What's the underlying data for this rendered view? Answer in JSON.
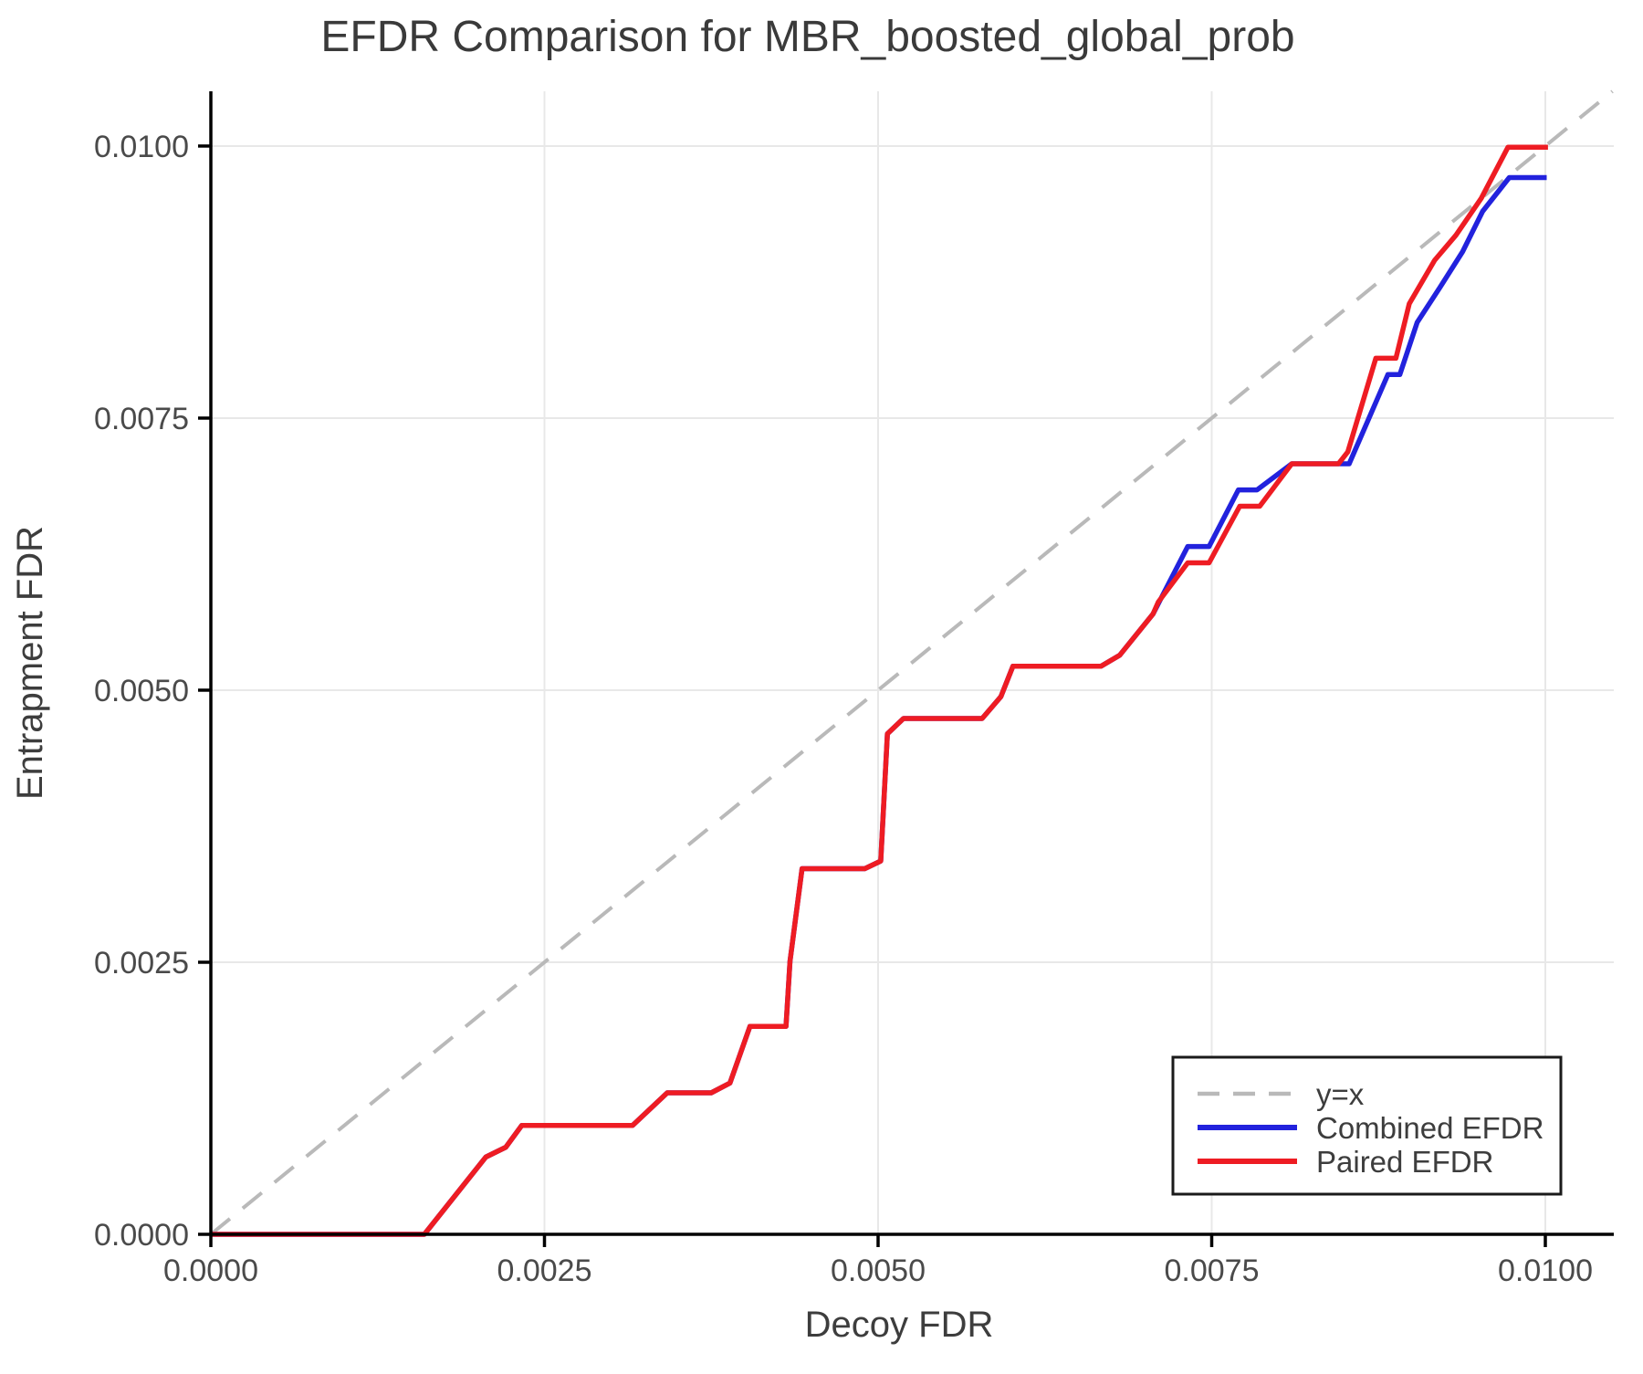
{
  "chart_data": {
    "type": "line",
    "title": "EFDR Comparison for MBR_boosted_global_prob",
    "xlabel": "Decoy FDR",
    "ylabel": "Entrapment FDR",
    "xlim": [
      0,
      0.010513
    ],
    "ylim": [
      0,
      0.010503
    ],
    "grid": true,
    "legend_position": "lower-right",
    "colors": {
      "grid": "#e8e8e8",
      "axis": "#000000",
      "identity": "#b9b9b9",
      "combined": "#2222dd",
      "paired": "#ee1c23"
    },
    "xticks": {
      "values": [
        0,
        0.0025,
        0.005,
        0.0075,
        0.01
      ],
      "labels": [
        "0.0000",
        "0.0025",
        "0.0050",
        "0.0075",
        "0.0100"
      ]
    },
    "yticks": {
      "values": [
        0,
        0.0025,
        0.005,
        0.0075,
        0.01
      ],
      "labels": [
        "0.0000",
        "0.0025",
        "0.0050",
        "0.0075",
        "0.0100"
      ]
    },
    "series": [
      {
        "id": "identity-line",
        "name": "y=x",
        "color": "#b9b9b9",
        "dash": "27 18",
        "width": 4,
        "points": [
          [
            0,
            0
          ],
          [
            0.010503,
            0.010503
          ]
        ]
      },
      {
        "id": "combined-efdr-line",
        "name": "Combined EFDR",
        "color": "#2222dd",
        "dash": null,
        "width": 5.5,
        "points": [
          [
            0.0,
            0.0
          ],
          [
            0.0016,
            0.0
          ],
          [
            0.00206,
            0.00071
          ],
          [
            0.00221,
            0.0008
          ],
          [
            0.00233,
            0.001
          ],
          [
            0.00316,
            0.001
          ],
          [
            0.00342,
            0.0013
          ],
          [
            0.00375,
            0.0013
          ],
          [
            0.00389,
            0.00139
          ],
          [
            0.00404,
            0.00191
          ],
          [
            0.00431,
            0.00191
          ],
          [
            0.00434,
            0.00251
          ],
          [
            0.00443,
            0.00336
          ],
          [
            0.0049,
            0.00336
          ],
          [
            0.00502,
            0.00343
          ],
          [
            0.00507,
            0.0046
          ],
          [
            0.00519,
            0.00474
          ],
          [
            0.00578,
            0.00474
          ],
          [
            0.00592,
            0.00494
          ],
          [
            0.00601,
            0.00522
          ],
          [
            0.00667,
            0.00522
          ],
          [
            0.00681,
            0.00532
          ],
          [
            0.00706,
            0.0057
          ],
          [
            0.00732,
            0.00632
          ],
          [
            0.00748,
            0.00632
          ],
          [
            0.0077,
            0.00684
          ],
          [
            0.00784,
            0.00684
          ],
          [
            0.0081,
            0.00708
          ],
          [
            0.00853,
            0.00708
          ],
          [
            0.00882,
            0.0079
          ],
          [
            0.00891,
            0.0079
          ],
          [
            0.00904,
            0.00838
          ],
          [
            0.00921,
            0.0087
          ],
          [
            0.00938,
            0.00903
          ],
          [
            0.00953,
            0.0094
          ],
          [
            0.00973,
            0.00971
          ],
          [
            0.01001,
            0.00971
          ]
        ]
      },
      {
        "id": "paired-efdr-line",
        "name": "Paired EFDR",
        "color": "#ee1c23",
        "dash": null,
        "width": 5.5,
        "points": [
          [
            0.0,
            0.0
          ],
          [
            0.0016,
            0.0
          ],
          [
            0.00206,
            0.00071
          ],
          [
            0.00221,
            0.0008
          ],
          [
            0.00233,
            0.001
          ],
          [
            0.00316,
            0.001
          ],
          [
            0.00342,
            0.0013
          ],
          [
            0.00375,
            0.0013
          ],
          [
            0.00389,
            0.00139
          ],
          [
            0.00404,
            0.00191
          ],
          [
            0.00431,
            0.00191
          ],
          [
            0.00434,
            0.00251
          ],
          [
            0.00443,
            0.00336
          ],
          [
            0.0049,
            0.00336
          ],
          [
            0.00502,
            0.00343
          ],
          [
            0.00507,
            0.0046
          ],
          [
            0.00519,
            0.00474
          ],
          [
            0.00578,
            0.00474
          ],
          [
            0.00592,
            0.00494
          ],
          [
            0.00601,
            0.00522
          ],
          [
            0.00667,
            0.00522
          ],
          [
            0.00681,
            0.00532
          ],
          [
            0.00706,
            0.0057
          ],
          [
            0.0071,
            0.00581
          ],
          [
            0.00732,
            0.00617
          ],
          [
            0.00748,
            0.00617
          ],
          [
            0.00771,
            0.00669
          ],
          [
            0.00786,
            0.00669
          ],
          [
            0.0081,
            0.00708
          ],
          [
            0.00845,
            0.00708
          ],
          [
            0.00852,
            0.00719
          ],
          [
            0.00873,
            0.00805
          ],
          [
            0.00888,
            0.00805
          ],
          [
            0.00898,
            0.00855
          ],
          [
            0.00917,
            0.00895
          ],
          [
            0.00933,
            0.00918
          ],
          [
            0.00952,
            0.00952
          ],
          [
            0.00972,
            0.00999
          ],
          [
            0.01002,
            0.00999
          ]
        ]
      }
    ]
  }
}
